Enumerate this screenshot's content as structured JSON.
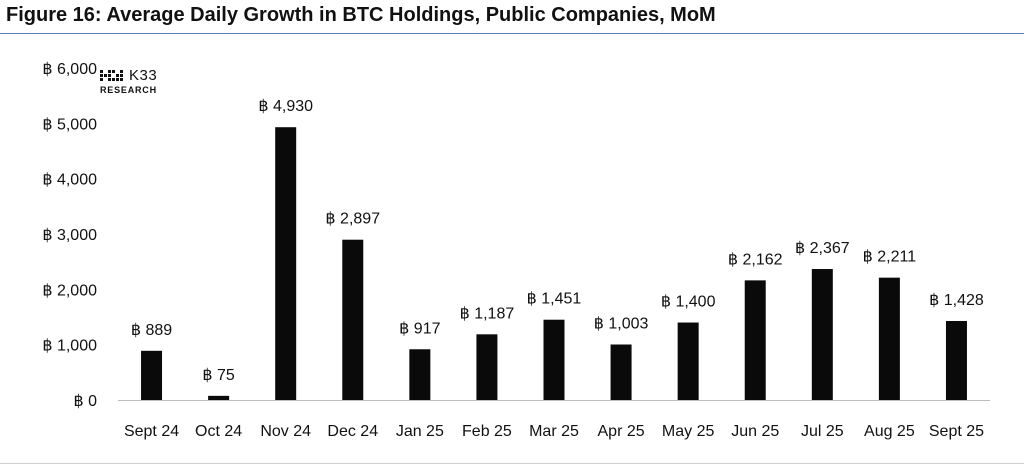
{
  "header": {
    "title": "Figure 16: Average Daily Growth in BTC Holdings, Public Companies, MoM"
  },
  "logo": {
    "name": "K33",
    "subtitle": "RESEARCH"
  },
  "colors": {
    "bar": "#0a0a0a",
    "rule": "#5b7db8",
    "text": "#111111"
  },
  "chart_data": {
    "type": "bar",
    "title": "Average Daily Growth in BTC Holdings, Public Companies, MoM",
    "currency_symbol": "฿",
    "xlabel": "",
    "ylabel": "",
    "ylim": [
      0,
      6000
    ],
    "yticks": [
      0,
      1000,
      2000,
      3000,
      4000,
      5000,
      6000
    ],
    "ytick_labels": [
      "฿ 0",
      "฿ 1,000",
      "฿ 2,000",
      "฿ 3,000",
      "฿ 4,000",
      "฿ 5,000",
      "฿ 6,000"
    ],
    "grid": false,
    "categories": [
      "Sept 24",
      "Oct 24",
      "Nov 24",
      "Dec 24",
      "Jan 25",
      "Feb 25",
      "Mar 25",
      "Apr 25",
      "May 25",
      "Jun 25",
      "Jul 25",
      "Aug 25",
      "Sept 25"
    ],
    "values": [
      889,
      75,
      4930,
      2897,
      917,
      1187,
      1451,
      1003,
      1400,
      2162,
      2367,
      2211,
      1428
    ],
    "data_labels": [
      "฿ 889",
      "฿ 75",
      "฿ 4,930",
      "฿ 2,897",
      "฿ 917",
      "฿ 1,187",
      "฿ 1,451",
      "฿ 1,003",
      "฿ 1,400",
      "฿ 2,162",
      "฿ 2,367",
      "฿ 2,211",
      "฿ 1,428"
    ]
  }
}
